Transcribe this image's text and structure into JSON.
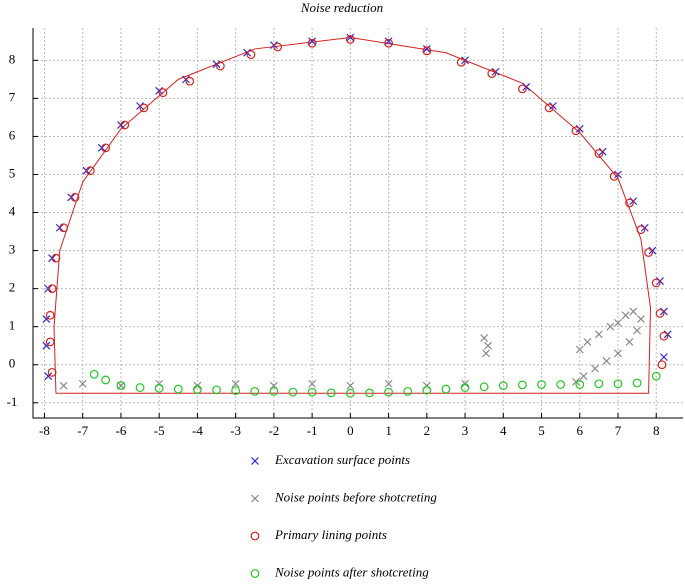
{
  "chart_data": {
    "type": "scatter",
    "title": "Noise reduction",
    "xlim": [
      -8.3,
      8.7
    ],
    "ylim": [
      -1.4,
      8.85
    ],
    "xticks": [
      -8,
      -7,
      -6,
      -5,
      -4,
      -3,
      -2,
      -1,
      0,
      1,
      2,
      3,
      4,
      5,
      6,
      7,
      8
    ],
    "yticks": [
      -1,
      0,
      1,
      2,
      3,
      4,
      5,
      6,
      7,
      8
    ],
    "grid": true,
    "outline": {
      "color": "#d62020",
      "x": [
        -7.7,
        -7.75,
        -7.6,
        -7.0,
        -6.0,
        -4.5,
        -2.5,
        0,
        2.5,
        4.5,
        6.0,
        7.0,
        7.6,
        7.85,
        7.8,
        -7.7
      ],
      "y": [
        -0.75,
        1.0,
        3.0,
        4.8,
        6.2,
        7.5,
        8.3,
        8.6,
        8.2,
        7.4,
        6.1,
        4.9,
        3.3,
        1.5,
        -0.75,
        -0.75
      ]
    },
    "series": [
      {
        "name": "Excavation surface points",
        "color": "#2a2ad0",
        "marker": "x",
        "x": [
          -7.9,
          -7.95,
          -7.95,
          -7.9,
          -7.8,
          -7.6,
          -7.3,
          -6.9,
          -6.5,
          -6.0,
          -5.5,
          -5.0,
          -4.3,
          -3.5,
          -2.7,
          -2.0,
          -1.0,
          0,
          1.0,
          2.0,
          3.0,
          3.8,
          4.6,
          5.3,
          6.0,
          6.6,
          7.0,
          7.4,
          7.7,
          7.9,
          8.1,
          8.2,
          8.3,
          8.2
        ],
        "y": [
          -0.3,
          0.5,
          1.2,
          2.0,
          2.8,
          3.6,
          4.4,
          5.1,
          5.7,
          6.3,
          6.8,
          7.2,
          7.5,
          7.9,
          8.2,
          8.4,
          8.5,
          8.6,
          8.5,
          8.3,
          8.0,
          7.7,
          7.3,
          6.8,
          6.2,
          5.6,
          5.0,
          4.3,
          3.6,
          3.0,
          2.2,
          1.4,
          0.8,
          0.2
        ]
      },
      {
        "name": "Noise points before shotcreting",
        "color": "#8a8a8a",
        "marker": "x",
        "x": [
          -7.5,
          -7.0,
          -6.0,
          -5.0,
          -4.0,
          -3.0,
          -2.0,
          -1.0,
          0,
          1.0,
          2.0,
          3.0,
          3.5,
          3.6,
          3.55,
          6.0,
          6.2,
          6.5,
          6.8,
          7.0,
          7.2,
          7.4,
          7.6,
          7.5,
          7.3,
          7.0,
          6.7,
          6.4,
          6.1,
          5.9
        ],
        "y": [
          -0.55,
          -0.5,
          -0.55,
          -0.5,
          -0.55,
          -0.5,
          -0.55,
          -0.5,
          -0.55,
          -0.5,
          -0.55,
          -0.5,
          0.7,
          0.5,
          0.3,
          0.4,
          0.6,
          0.8,
          1.0,
          1.1,
          1.3,
          1.4,
          1.2,
          0.9,
          0.6,
          0.3,
          0.1,
          -0.1,
          -0.3,
          -0.45
        ]
      },
      {
        "name": "Primary lining points",
        "color": "#d62020",
        "marker": "o",
        "x": [
          -7.8,
          -7.85,
          -7.85,
          -7.8,
          -7.7,
          -7.5,
          -7.2,
          -6.8,
          -6.4,
          -5.9,
          -5.4,
          -4.9,
          -4.2,
          -3.4,
          -2.6,
          -1.9,
          -1.0,
          0,
          1.0,
          2.0,
          2.9,
          3.7,
          4.5,
          5.2,
          5.9,
          6.5,
          6.9,
          7.3,
          7.6,
          7.8,
          8.0,
          8.1,
          8.2,
          8.15
        ],
        "y": [
          -0.2,
          0.6,
          1.3,
          2.0,
          2.8,
          3.6,
          4.4,
          5.1,
          5.7,
          6.3,
          6.75,
          7.15,
          7.45,
          7.85,
          8.15,
          8.35,
          8.45,
          8.55,
          8.45,
          8.25,
          7.95,
          7.65,
          7.25,
          6.75,
          6.15,
          5.55,
          4.95,
          4.25,
          3.55,
          2.95,
          2.15,
          1.35,
          0.75,
          0.0
        ]
      },
      {
        "name": "Noise points after shotcreting",
        "color": "#22c722",
        "marker": "o",
        "x": [
          -6.7,
          -6.4,
          -6.0,
          -5.5,
          -5.0,
          -4.5,
          -4.0,
          -3.5,
          -3.0,
          -2.5,
          -2.0,
          -1.5,
          -1.0,
          -0.5,
          0,
          0.5,
          1.0,
          1.5,
          2.0,
          2.5,
          3.0,
          3.5,
          4.0,
          4.5,
          5.0,
          5.5,
          6.0,
          6.5,
          7.0,
          7.5,
          8.0
        ],
        "y": [
          -0.25,
          -0.4,
          -0.55,
          -0.6,
          -0.62,
          -0.64,
          -0.65,
          -0.66,
          -0.68,
          -0.7,
          -0.7,
          -0.72,
          -0.72,
          -0.74,
          -0.75,
          -0.74,
          -0.72,
          -0.7,
          -0.67,
          -0.64,
          -0.6,
          -0.58,
          -0.55,
          -0.53,
          -0.52,
          -0.52,
          -0.52,
          -0.5,
          -0.5,
          -0.48,
          -0.3
        ]
      }
    ]
  }
}
